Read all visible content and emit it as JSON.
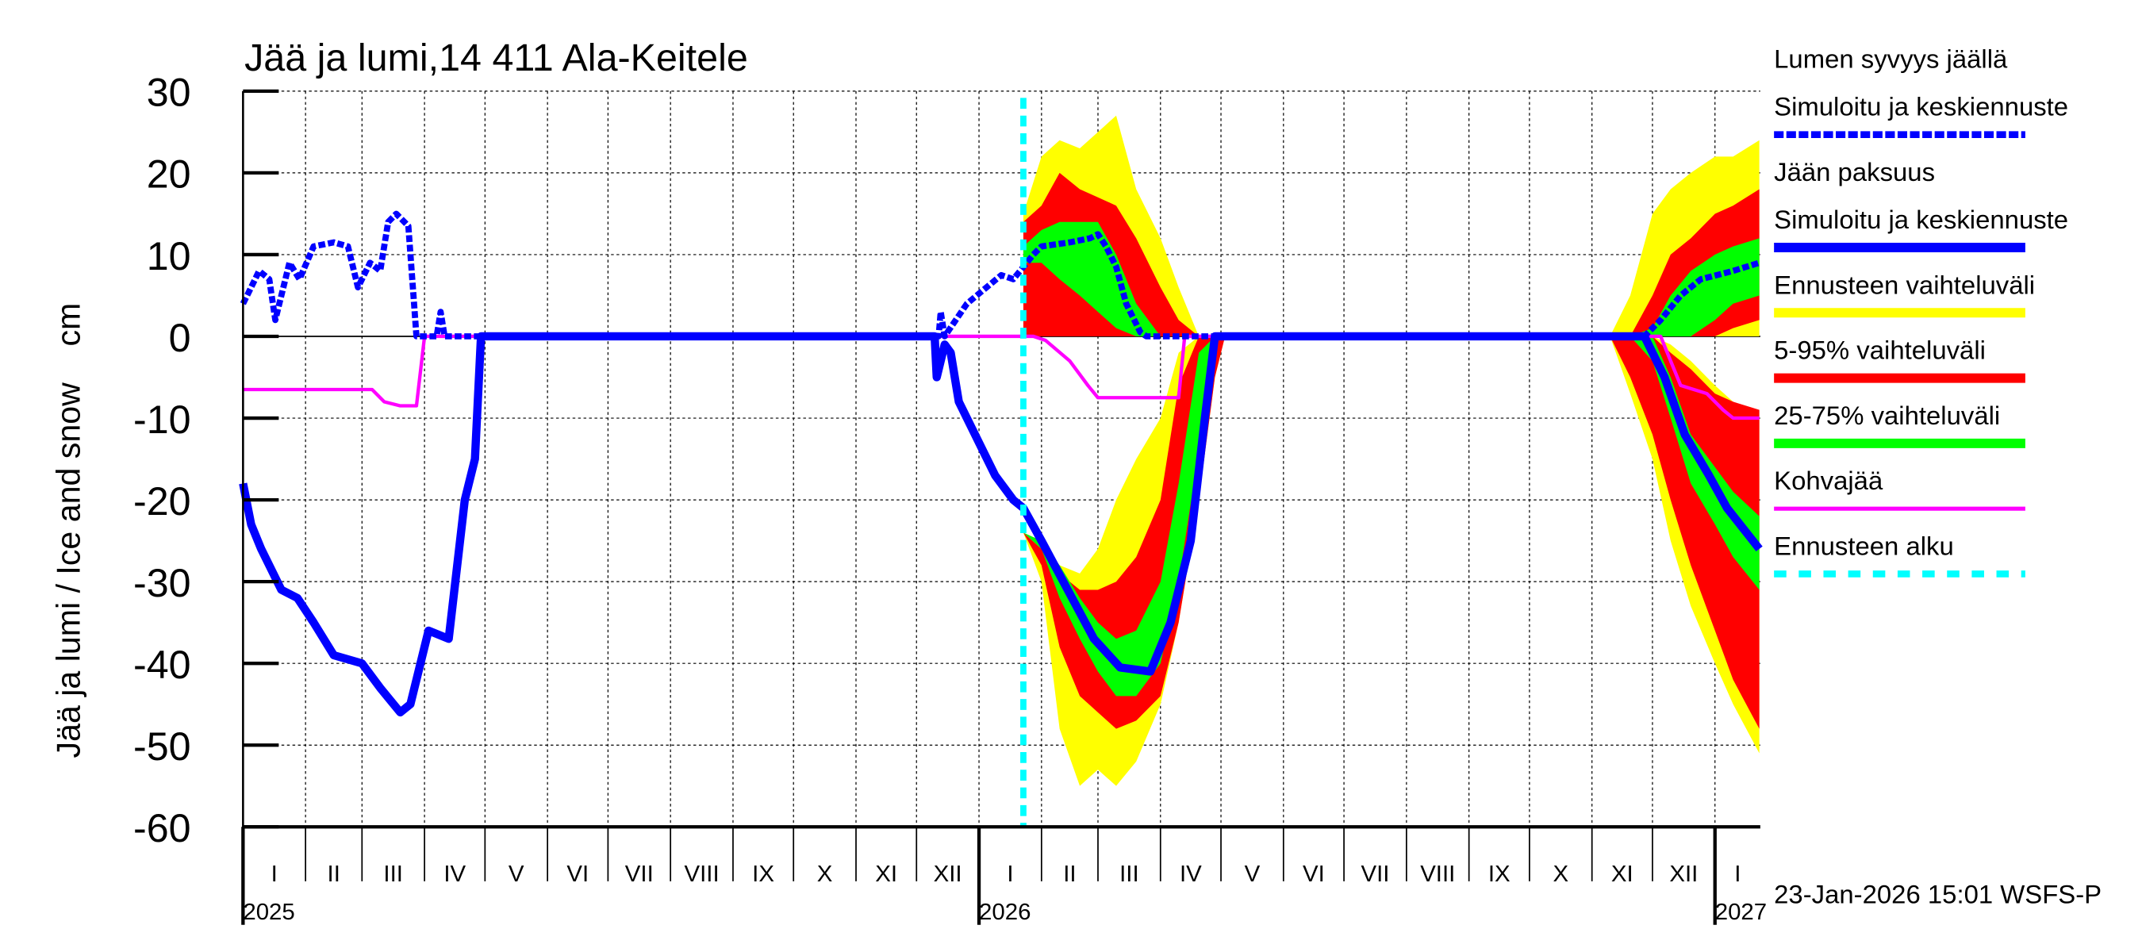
{
  "chart_data": {
    "type": "area",
    "title": "Jää ja lumi,14 411 Ala-Keitele",
    "ylabel": "Jää ja lumi / Ice and snow    cm",
    "ylim": [
      -60,
      30
    ],
    "yticks": [
      30,
      20,
      10,
      0,
      -10,
      -20,
      -30,
      -40,
      -50,
      -60
    ],
    "xlim": [
      "2025-01-01",
      "2027-01-23"
    ],
    "grid": true,
    "legend_position": "right",
    "month_labels": [
      "I",
      "II",
      "III",
      "IV",
      "V",
      "VI",
      "VII",
      "VIII",
      "IX",
      "X",
      "XI",
      "XII"
    ],
    "year_labels": [
      "2025",
      "2026",
      "2027"
    ],
    "forecast_start": "2026-01-23",
    "footer": "23-Jan-2026 15:01 WSFS-P",
    "colors": {
      "snow": "#0000ff",
      "ice": "#0000ff",
      "range": "#ffff00",
      "p5_95": "#ff0000",
      "p25_75": "#00ff00",
      "slush": "#ff00ff",
      "forecast_start": "#00ffff"
    },
    "legend": [
      {
        "label1": "Lumen syvyys jäällä",
        "label2": "Simuloitu ja keskiennuste",
        "color": "#0000ff",
        "style": "dashed"
      },
      {
        "label1": "Jään paksuus",
        "label2": "Simuloitu ja keskiennuste",
        "color": "#0000ff",
        "style": "solid"
      },
      {
        "label1": "Ennusteen vaihteluväli",
        "color": "#ffff00",
        "style": "band"
      },
      {
        "label1": "5-95% vaihteluväli",
        "color": "#ff0000",
        "style": "band"
      },
      {
        "label1": "25-75% vaihteluväli",
        "color": "#00ff00",
        "style": "band"
      },
      {
        "label1": "Kohvajää",
        "color": "#ff00ff",
        "style": "thin"
      },
      {
        "label1": "Ennusteen alku",
        "color": "#00ffff",
        "style": "dotted"
      }
    ],
    "bands": [
      {
        "name": "Ennusteen vaihteluväli",
        "color": "#ffff00",
        "parts": [
          {
            "dates": [
              "2026-01-23",
              "2026-02-01",
              "2026-02-10",
              "2026-02-20",
              "2026-03-01",
              "2026-03-10",
              "2026-03-20",
              "2026-04-01",
              "2026-04-10",
              "2026-04-20"
            ],
            "lower": [
              0,
              0,
              0,
              0,
              0,
              0,
              0,
              0,
              0,
              0
            ],
            "upper": [
              15,
              22,
              24,
              23,
              25,
              27,
              18,
              12,
              6,
              0
            ]
          },
          {
            "dates": [
              "2026-01-23",
              "2026-02-01",
              "2026-02-10",
              "2026-02-20",
              "2026-03-01",
              "2026-03-10",
              "2026-03-20",
              "2026-04-01",
              "2026-04-10",
              "2026-04-20",
              "2026-04-28",
              "2026-05-03"
            ],
            "lower": [
              -24,
              -30,
              -48,
              -55,
              -53,
              -55,
              -52,
              -45,
              -35,
              -20,
              -5,
              0
            ],
            "upper": [
              -24,
              -26,
              -28,
              -29,
              -26,
              -20,
              -15,
              -10,
              -2,
              0,
              0,
              0
            ]
          },
          {
            "dates": [
              "2026-11-10",
              "2026-11-20",
              "2026-12-01",
              "2026-12-10",
              "2026-12-20",
              "2027-01-01",
              "2027-01-10",
              "2027-01-23"
            ],
            "lower": [
              0,
              0,
              0,
              0,
              0,
              0,
              0,
              0
            ],
            "upper": [
              0,
              5,
              15,
              18,
              20,
              22,
              22,
              24
            ]
          },
          {
            "dates": [
              "2026-11-10",
              "2026-11-20",
              "2026-12-01",
              "2026-12-10",
              "2026-12-20",
              "2027-01-01",
              "2027-01-10",
              "2027-01-23"
            ],
            "lower": [
              0,
              -7,
              -15,
              -25,
              -33,
              -40,
              -45,
              -51
            ],
            "upper": [
              0,
              0,
              0,
              -1,
              -3,
              -6,
              -8,
              -10
            ]
          }
        ]
      },
      {
        "name": "5-95% vaihteluväli",
        "color": "#ff0000",
        "parts": [
          {
            "dates": [
              "2026-01-23",
              "2026-02-01",
              "2026-02-10",
              "2026-02-20",
              "2026-03-01",
              "2026-03-10",
              "2026-03-20",
              "2026-04-01",
              "2026-04-10",
              "2026-04-20"
            ],
            "lower": [
              0,
              0,
              0,
              0,
              0,
              0,
              0,
              0,
              0,
              0
            ],
            "upper": [
              14,
              16,
              20,
              18,
              17,
              16,
              12,
              6,
              2,
              0
            ]
          },
          {
            "dates": [
              "2026-01-23",
              "2026-02-01",
              "2026-02-10",
              "2026-02-20",
              "2026-03-01",
              "2026-03-10",
              "2026-03-20",
              "2026-04-01",
              "2026-04-10",
              "2026-04-20",
              "2026-04-28",
              "2026-05-03"
            ],
            "lower": [
              -24,
              -28,
              -38,
              -44,
              -46,
              -48,
              -47,
              -44,
              -35,
              -20,
              -5,
              0
            ],
            "upper": [
              -24,
              -26,
              -29,
              -31,
              -31,
              -30,
              -27,
              -20,
              -6,
              0,
              0,
              0
            ]
          },
          {
            "dates": [
              "2026-11-10",
              "2026-11-20",
              "2026-12-01",
              "2026-12-10",
              "2026-12-20",
              "2027-01-01",
              "2027-01-10",
              "2027-01-23"
            ],
            "lower": [
              0,
              0,
              0,
              0,
              0,
              0,
              1,
              2
            ],
            "upper": [
              0,
              0,
              5,
              10,
              12,
              15,
              16,
              18
            ]
          },
          {
            "dates": [
              "2026-11-10",
              "2026-11-20",
              "2026-12-01",
              "2026-12-10",
              "2026-12-20",
              "2027-01-01",
              "2027-01-10",
              "2027-01-23"
            ],
            "lower": [
              0,
              -5,
              -12,
              -20,
              -28,
              -36,
              -42,
              -48
            ],
            "upper": [
              0,
              0,
              0,
              -2,
              -4,
              -7,
              -8,
              -9
            ]
          }
        ]
      },
      {
        "name": "25-75% vaihteluväli",
        "color": "#00ff00",
        "parts": [
          {
            "dates": [
              "2026-01-23",
              "2026-02-01",
              "2026-02-10",
              "2026-02-20",
              "2026-03-01",
              "2026-03-10",
              "2026-03-20",
              "2026-04-01",
              "2026-04-10",
              "2026-04-20"
            ],
            "lower": [
              9,
              9,
              7,
              5,
              3,
              1,
              0,
              0,
              0,
              0
            ],
            "upper": [
              11,
              13,
              14,
              14,
              14,
              10,
              4,
              0,
              0,
              0
            ]
          },
          {
            "dates": [
              "2026-01-23",
              "2026-02-01",
              "2026-02-10",
              "2026-02-20",
              "2026-03-01",
              "2026-03-10",
              "2026-03-20",
              "2026-04-01",
              "2026-04-10",
              "2026-04-20",
              "2026-04-28",
              "2026-05-03"
            ],
            "lower": [
              -24,
              -26,
              -32,
              -37,
              -41,
              -44,
              -44,
              -40,
              -30,
              -14,
              0,
              0
            ],
            "upper": [
              -24,
              -25,
              -28,
              -32,
              -35,
              -37,
              -36,
              -30,
              -18,
              -2,
              0,
              0
            ]
          },
          {
            "dates": [
              "2026-11-10",
              "2026-11-20",
              "2026-12-01",
              "2026-12-10",
              "2026-12-20",
              "2027-01-01",
              "2027-01-10",
              "2027-01-23"
            ],
            "lower": [
              0,
              0,
              0,
              0,
              0,
              2,
              4,
              5
            ],
            "upper": [
              0,
              0,
              1,
              5,
              8,
              10,
              11,
              12
            ]
          },
          {
            "dates": [
              "2026-11-10",
              "2026-11-20",
              "2026-12-01",
              "2026-12-10",
              "2026-12-20",
              "2027-01-01",
              "2027-01-10",
              "2027-01-23"
            ],
            "lower": [
              0,
              0,
              -3,
              -10,
              -18,
              -23,
              -27,
              -31
            ],
            "upper": [
              0,
              0,
              0,
              -5,
              -12,
              -16,
              -19,
              -22
            ]
          }
        ]
      }
    ],
    "series": [
      {
        "name": "Kohvajää",
        "color": "#ff00ff",
        "style": "thin",
        "points": [
          [
            "2025-01-01",
            -6.5
          ],
          [
            "2025-03-06",
            -6.5
          ],
          [
            "2025-03-12",
            -8
          ],
          [
            "2025-03-20",
            -8.5
          ],
          [
            "2025-03-28",
            -8.5
          ],
          [
            "2025-04-01",
            0
          ],
          [
            "2026-01-28",
            0
          ],
          [
            "2026-02-03",
            -0.5
          ],
          [
            "2026-02-15",
            -3
          ],
          [
            "2026-02-24",
            -6
          ],
          [
            "2026-03-01",
            -7.5
          ],
          [
            "2026-04-10",
            -7.5
          ],
          [
            "2026-04-13",
            0
          ],
          [
            "2026-12-05",
            0
          ],
          [
            "2026-12-15",
            -6
          ],
          [
            "2026-12-28",
            -7
          ],
          [
            "2027-01-05",
            -9
          ],
          [
            "2027-01-10",
            -10
          ],
          [
            "2027-01-23",
            -10
          ]
        ]
      },
      {
        "name": "Jään paksuus",
        "color": "#0000ff",
        "style": "solid",
        "points": [
          [
            "2025-01-01",
            -18
          ],
          [
            "2025-01-05",
            -23
          ],
          [
            "2025-01-10",
            -26
          ],
          [
            "2025-01-20",
            -31
          ],
          [
            "2025-01-28",
            -32
          ],
          [
            "2025-02-05",
            -35
          ],
          [
            "2025-02-15",
            -39
          ],
          [
            "2025-03-01",
            -40
          ],
          [
            "2025-03-10",
            -43
          ],
          [
            "2025-03-20",
            -46
          ],
          [
            "2025-03-25",
            -45
          ],
          [
            "2025-04-03",
            -36
          ],
          [
            "2025-04-13",
            -37
          ],
          [
            "2025-04-21",
            -20
          ],
          [
            "2025-04-26",
            -15
          ],
          [
            "2025-04-29",
            0
          ],
          [
            "2025-12-10",
            0
          ],
          [
            "2025-12-11",
            -5
          ],
          [
            "2025-12-15",
            -1
          ],
          [
            "2025-12-18",
            -2
          ],
          [
            "2025-12-22",
            -8
          ],
          [
            "2026-01-01",
            -13
          ],
          [
            "2026-01-09",
            -17
          ],
          [
            "2026-01-18",
            -20
          ],
          [
            "2026-01-23",
            -21
          ],
          [
            "2026-02-01",
            -25
          ],
          [
            "2026-02-14",
            -31
          ],
          [
            "2026-02-27",
            -37
          ],
          [
            "2026-03-12",
            -40.5
          ],
          [
            "2026-03-27",
            -41
          ],
          [
            "2026-04-06",
            -35
          ],
          [
            "2026-04-16",
            -25
          ],
          [
            "2026-04-23",
            -10
          ],
          [
            "2026-04-28",
            0
          ],
          [
            "2026-11-27",
            0
          ],
          [
            "2026-12-07",
            -5
          ],
          [
            "2026-12-17",
            -12
          ],
          [
            "2026-12-29",
            -17
          ],
          [
            "2027-01-07",
            -21
          ],
          [
            "2027-01-23",
            -26
          ]
        ]
      },
      {
        "name": "Lumen syvyys jäällä",
        "color": "#0000ff",
        "style": "dashed",
        "points": [
          [
            "2025-01-01",
            4
          ],
          [
            "2025-01-05",
            6
          ],
          [
            "2025-01-09",
            8
          ],
          [
            "2025-01-14",
            7
          ],
          [
            "2025-01-17",
            2
          ],
          [
            "2025-01-24",
            9
          ],
          [
            "2025-01-29",
            7
          ],
          [
            "2025-02-05",
            11
          ],
          [
            "2025-02-15",
            11.5
          ],
          [
            "2025-02-22",
            11
          ],
          [
            "2025-02-27",
            6
          ],
          [
            "2025-03-05",
            9
          ],
          [
            "2025-03-10",
            8
          ],
          [
            "2025-03-14",
            14
          ],
          [
            "2025-03-18",
            15
          ],
          [
            "2025-03-24",
            13.5
          ],
          [
            "2025-03-28",
            0
          ],
          [
            "2025-04-07",
            0
          ],
          [
            "2025-04-09",
            3
          ],
          [
            "2025-04-11",
            0
          ],
          [
            "2025-12-12",
            0
          ],
          [
            "2025-12-13",
            3
          ],
          [
            "2025-12-15",
            0
          ],
          [
            "2025-12-26",
            4
          ],
          [
            "2026-01-12",
            7.5
          ],
          [
            "2026-01-18",
            7
          ],
          [
            "2026-01-28",
            10
          ],
          [
            "2026-02-01",
            11
          ],
          [
            "2026-02-15",
            11.5
          ],
          [
            "2026-02-25",
            12
          ],
          [
            "2026-03-01",
            12.5
          ],
          [
            "2026-03-05",
            11
          ],
          [
            "2026-03-10",
            8.5
          ],
          [
            "2026-03-15",
            4
          ],
          [
            "2026-03-22",
            0.5
          ],
          [
            "2026-03-25",
            0
          ],
          [
            "2026-11-27",
            0
          ],
          [
            "2026-12-05",
            2
          ],
          [
            "2026-12-15",
            5
          ],
          [
            "2026-12-25",
            7
          ],
          [
            "2027-01-10",
            8
          ],
          [
            "2027-01-23",
            9
          ]
        ]
      }
    ]
  }
}
